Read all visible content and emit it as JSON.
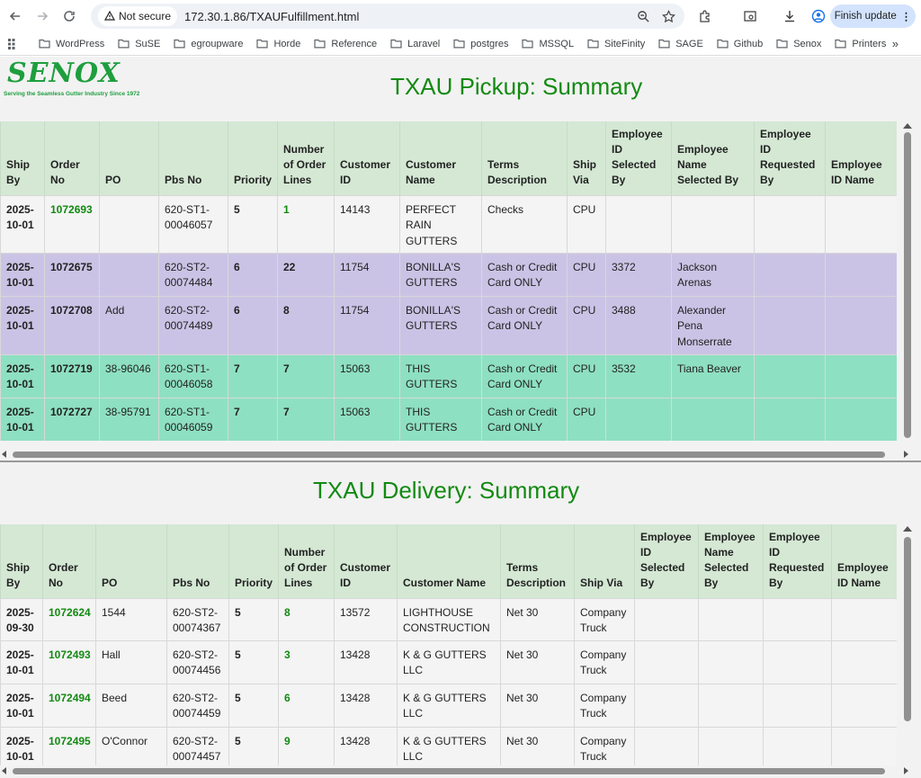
{
  "browser": {
    "security_label": "Not secure",
    "url": "172.30.1.86/TXAUFulfillment.html",
    "finish_update_label": "Finish update"
  },
  "bookmarks": [
    "WordPress",
    "SuSE",
    "egroupware",
    "Horde",
    "Reference",
    "Laravel",
    "postgres",
    "MSSQL",
    "SiteFinity",
    "SAGE",
    "Github",
    "Senox",
    "Printers"
  ],
  "logo": {
    "brand": "SENOX",
    "tagline": "Serving the Seamless Gutter Industry Since 1972"
  },
  "pickup": {
    "title": "TXAU Pickup: Summary",
    "headers": [
      "Ship By",
      "Order No",
      "PO",
      "Pbs No",
      "Priority",
      "Number of Order Lines",
      "Customer ID",
      "Customer Name",
      "Terms Description",
      "Ship Via",
      "Employee ID Selected By",
      "Employee Name Selected By",
      "Employee ID Requested By",
      "Employee ID Name"
    ],
    "rows": [
      {
        "style": "white",
        "cells": [
          "2025-10-01",
          "1072693",
          "",
          "620-ST1-00046057",
          "5",
          "1",
          "14143",
          "PERFECT RAIN GUTTERS",
          "Checks",
          "CPU",
          "",
          "",
          "",
          ""
        ]
      },
      {
        "style": "purple",
        "cells": [
          "2025-10-01",
          "1072675",
          "",
          "620-ST2-00074484",
          "6",
          "22",
          "11754",
          "BONILLA'S GUTTERS",
          "Cash or Credit Card ONLY",
          "CPU",
          "3372",
          "Jackson Arenas",
          "",
          ""
        ]
      },
      {
        "style": "purple",
        "cells": [
          "2025-10-01",
          "1072708",
          "Add",
          "620-ST2-00074489",
          "6",
          "8",
          "11754",
          "BONILLA'S GUTTERS",
          "Cash or Credit Card ONLY",
          "CPU",
          "3488",
          "Alexander Pena Monserrate",
          "",
          ""
        ]
      },
      {
        "style": "green",
        "cells": [
          "2025-10-01",
          "1072719",
          "38-96046",
          "620-ST1-00046058",
          "7",
          "7",
          "15063",
          "THIS GUTTERS",
          "Cash or Credit Card ONLY",
          "CPU",
          "3532",
          "Tiana Beaver",
          "",
          ""
        ]
      },
      {
        "style": "green",
        "cells": [
          "2025-10-01",
          "1072727",
          "38-95791",
          "620-ST1-00046059",
          "7",
          "7",
          "15063",
          "THIS GUTTERS",
          "Cash or Credit Card ONLY",
          "CPU",
          "",
          "",
          "",
          ""
        ]
      }
    ]
  },
  "delivery": {
    "title": "TXAU Delivery: Summary",
    "headers": [
      "Ship By",
      "Order No",
      "PO",
      "Pbs No",
      "Priority",
      "Number of Order Lines",
      "Customer ID",
      "Customer Name",
      "Terms Description",
      "Ship Via",
      "Employee ID Selected By",
      "Employee Name Selected By",
      "Employee ID Requested By",
      "Employee ID Name"
    ],
    "rows": [
      {
        "style": "white",
        "cells": [
          "2025-09-30",
          "1072624",
          "1544",
          "620-ST2-00074367",
          "5",
          "8",
          "13572",
          "LIGHTHOUSE CONSTRUCTION",
          "Net 30",
          "Company Truck",
          "",
          "",
          "",
          ""
        ]
      },
      {
        "style": "white",
        "cells": [
          "2025-10-01",
          "1072493",
          "Hall",
          "620-ST2-00074456",
          "5",
          "3",
          "13428",
          "K & G GUTTERS LLC",
          "Net 30",
          "Company Truck",
          "",
          "",
          "",
          ""
        ]
      },
      {
        "style": "white",
        "cells": [
          "2025-10-01",
          "1072494",
          "Beed",
          "620-ST2-00074459",
          "5",
          "6",
          "13428",
          "K & G GUTTERS LLC",
          "Net 30",
          "Company Truck",
          "",
          "",
          "",
          ""
        ]
      },
      {
        "style": "white",
        "cells": [
          "2025-10-01",
          "1072495",
          "O'Connor",
          "620-ST2-00074457",
          "5",
          "9",
          "13428",
          "K & G GUTTERS LLC",
          "Net 30",
          "Company Truck",
          "",
          "",
          "",
          ""
        ]
      }
    ]
  },
  "colors": {
    "title_green": "#128a12",
    "header_bg": "#d4e8d4",
    "purple_row": "#cbc3e5",
    "green_row": "#8ee0c2"
  }
}
